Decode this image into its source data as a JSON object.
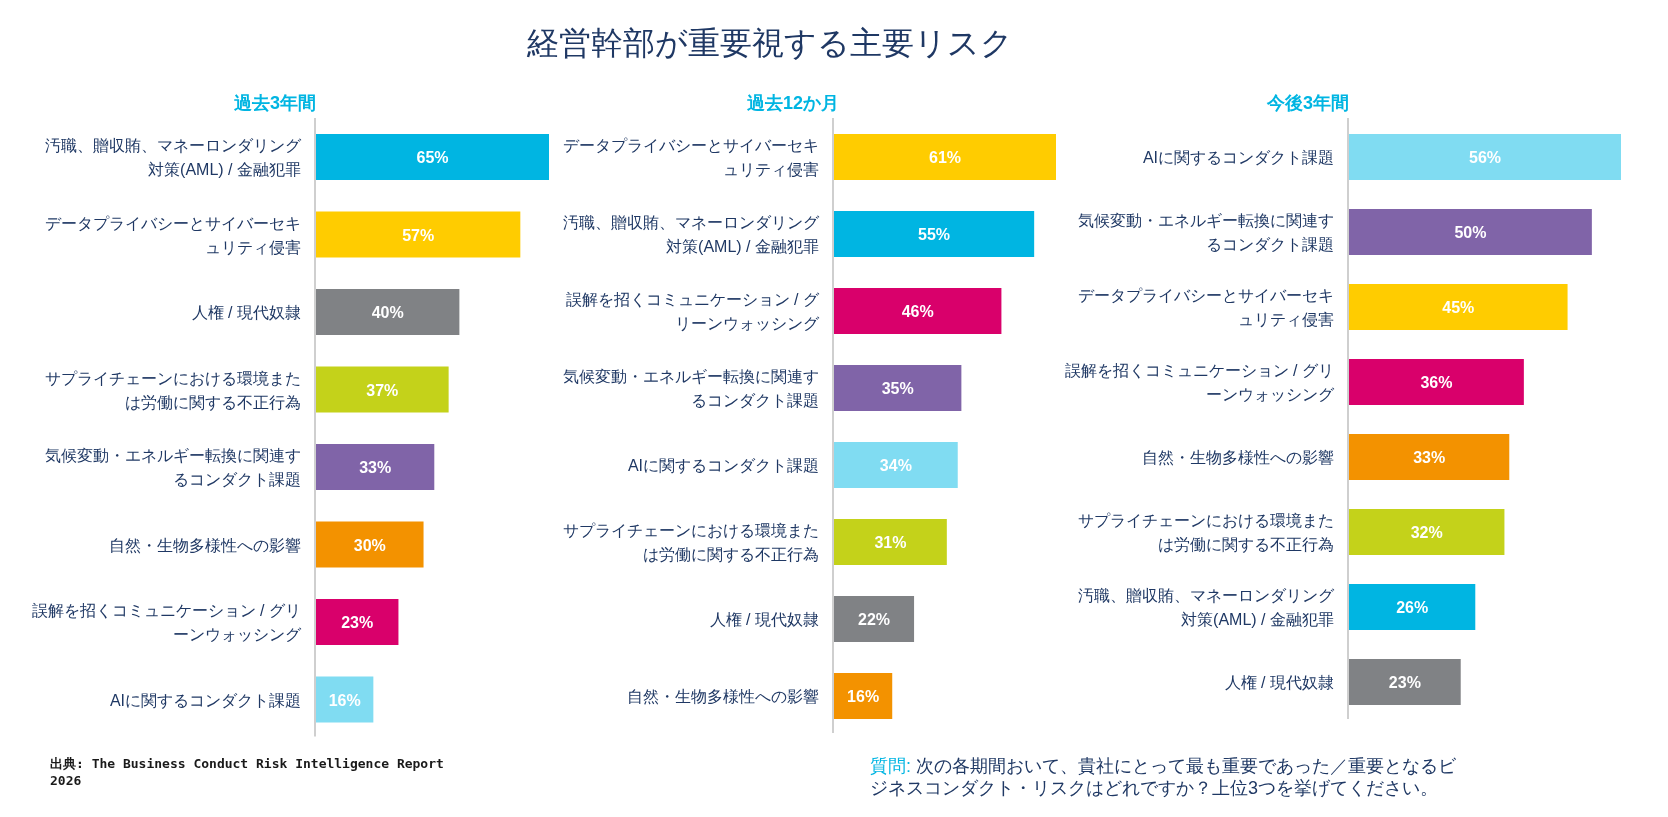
{
  "chart_data": [
    {
      "type": "bar",
      "orientation": "horizontal",
      "title": "過去3年間",
      "categories": [
        "汚職、贈収賄、マネーロンダリング対策(AML) / 金融犯罪",
        "データプライバシーとサイバーセキュリティ侵害",
        "人権 / 現代奴隷",
        "サプライチェーンにおける環境または労働に関する不正行為",
        "気候変動・エネルギー転換に関連するコンダクト課題",
        "自然・生物多様性への影響",
        "誤解を招くコミュニケーション / グリーンウォッシング",
        "AIに関するコンダクト課題"
      ],
      "values": [
        65,
        57,
        40,
        37,
        33,
        30,
        23,
        16
      ],
      "value_labels": [
        "65%",
        "57%",
        "40%",
        "37%",
        "33%",
        "30%",
        "23%",
        "16%"
      ],
      "colors": [
        "#00b5e2",
        "#ffcc00",
        "#808285",
        "#c4d21a",
        "#8064a8",
        "#f39200",
        "#d9006b",
        "#80dcf2"
      ],
      "annotations": [
        "経営幹部が重要視する主要リスク",
        "出典: The Business Conduct Risk Intelligence Report 2026"
      ]
    },
    {
      "type": "bar",
      "orientation": "horizontal",
      "title": "過去12か月",
      "categories": [
        "データプライバシーとサイバーセキュリティ侵害",
        "汚職、贈収賄、マネーロンダリング対策(AML) / 金融犯罪",
        "誤解を招くコミュニケーション / グリーンウォッシング",
        "気候変動・エネルギー転換に関連するコンダクト課題",
        "AIに関するコンダクト課題",
        "サプライチェーンにおける環境または労働に関する不正行為",
        "人権 / 現代奴隷",
        "自然・生物多様性への影響"
      ],
      "values": [
        61,
        55,
        46,
        35,
        34,
        31,
        22,
        16
      ],
      "value_labels": [
        "61%",
        "55%",
        "46%",
        "35%",
        "34%",
        "31%",
        "22%",
        "16%"
      ],
      "colors": [
        "#ffcc00",
        "#00b5e2",
        "#d9006b",
        "#8064a8",
        "#80dcf2",
        "#c4d21a",
        "#808285",
        "#f39200"
      ]
    },
    {
      "type": "bar",
      "orientation": "horizontal",
      "title": "今後3年間",
      "categories": [
        "AIに関するコンダクト課題",
        "気候変動・エネルギー転換に関連するコンダクト課題",
        "データプライバシーとサイバーセキュリティ侵害",
        "誤解を招くコミュニケーション / グリーンウォッシング",
        "自然・生物多様性への影響",
        "サプライチェーンにおける環境または労働に関する不正行為",
        "汚職、贈収賄、マネーロンダリング対策(AML) / 金融犯罪",
        "人権 / 現代奴隷"
      ],
      "values": [
        56,
        50,
        45,
        36,
        33,
        32,
        26,
        23
      ],
      "value_labels": [
        "56%",
        "50%",
        "45%",
        "36%",
        "33%",
        "32%",
        "26%",
        "23%"
      ],
      "colors": [
        "#80dcf2",
        "#8064a8",
        "#ffcc00",
        "#d9006b",
        "#f39200",
        "#c4d21a",
        "#00b5e2",
        "#808285"
      ],
      "annotations": [
        "質問: 次の各期間おいて、貴社にとって最も重要であった／重要となるビジネスコンダクト・リスクはどれですか？上位3つを挙げてください。"
      ]
    }
  ]
}
